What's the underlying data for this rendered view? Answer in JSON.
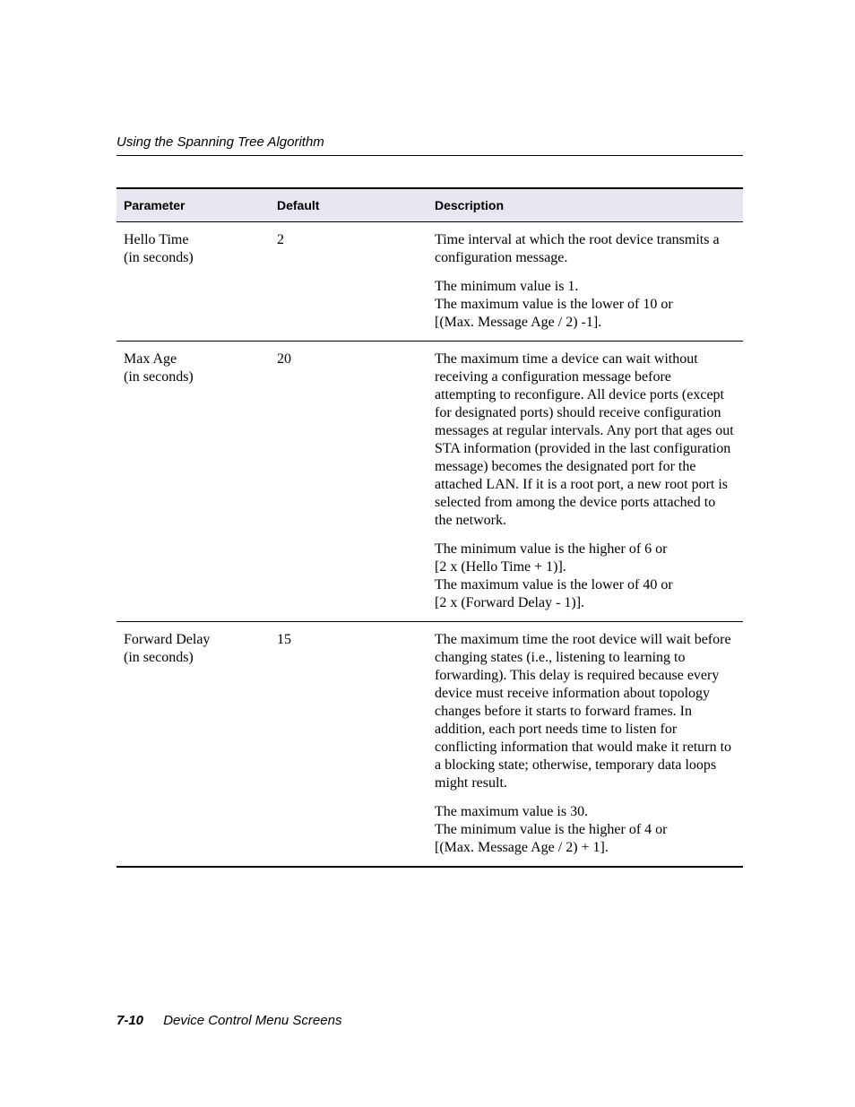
{
  "header": {
    "running_title": "Using the Spanning Tree Algorithm"
  },
  "table": {
    "columns": {
      "parameter": "Parameter",
      "default": "Default",
      "description": "Description"
    },
    "header_bg": "#e7e7f2",
    "border_color": "#000000",
    "rows": [
      {
        "parameter_line1": "Hello Time",
        "parameter_line2": "(in seconds)",
        "default": "2",
        "desc_p1": "Time interval at which the root device transmits a configuration message.",
        "desc_p2": "The minimum value is 1.\nThe maximum value is the lower of 10 or\n[(Max. Message Age / 2) -1]."
      },
      {
        "parameter_line1": "Max Age",
        "parameter_line2": "(in seconds)",
        "default": "20",
        "desc_p1": "The maximum time a device can wait without receiving a configuration message before attempting to reconfigure. All device ports (except for designated ports) should receive configuration messages at regular intervals. Any port that ages out STA information (provided in the last configuration message) becomes the designated port for the attached LAN. If it is a root port, a new root port is selected from among the device ports attached to the network.",
        "desc_p2": "The minimum value is the higher of 6 or\n[2 x (Hello Time + 1)].\nThe maximum value is the lower of 40 or\n[2 x (Forward Delay - 1)]."
      },
      {
        "parameter_line1": "Forward Delay",
        "parameter_line2": "(in seconds)",
        "default": "15",
        "desc_p1": "The maximum time the root device will wait before changing states (i.e., listening to learning to forwarding). This delay is required because every device must receive information about topology changes before it starts to forward frames. In addition, each port needs time to listen for conflicting information that would make it return to a blocking state; otherwise, temporary data loops might result.",
        "desc_p2": "The maximum value is 30.\nThe minimum value is the higher of 4 or\n[(Max. Message Age / 2) + 1]."
      }
    ]
  },
  "footer": {
    "page_number": "7-10",
    "section_title": "Device Control Menu Screens"
  }
}
